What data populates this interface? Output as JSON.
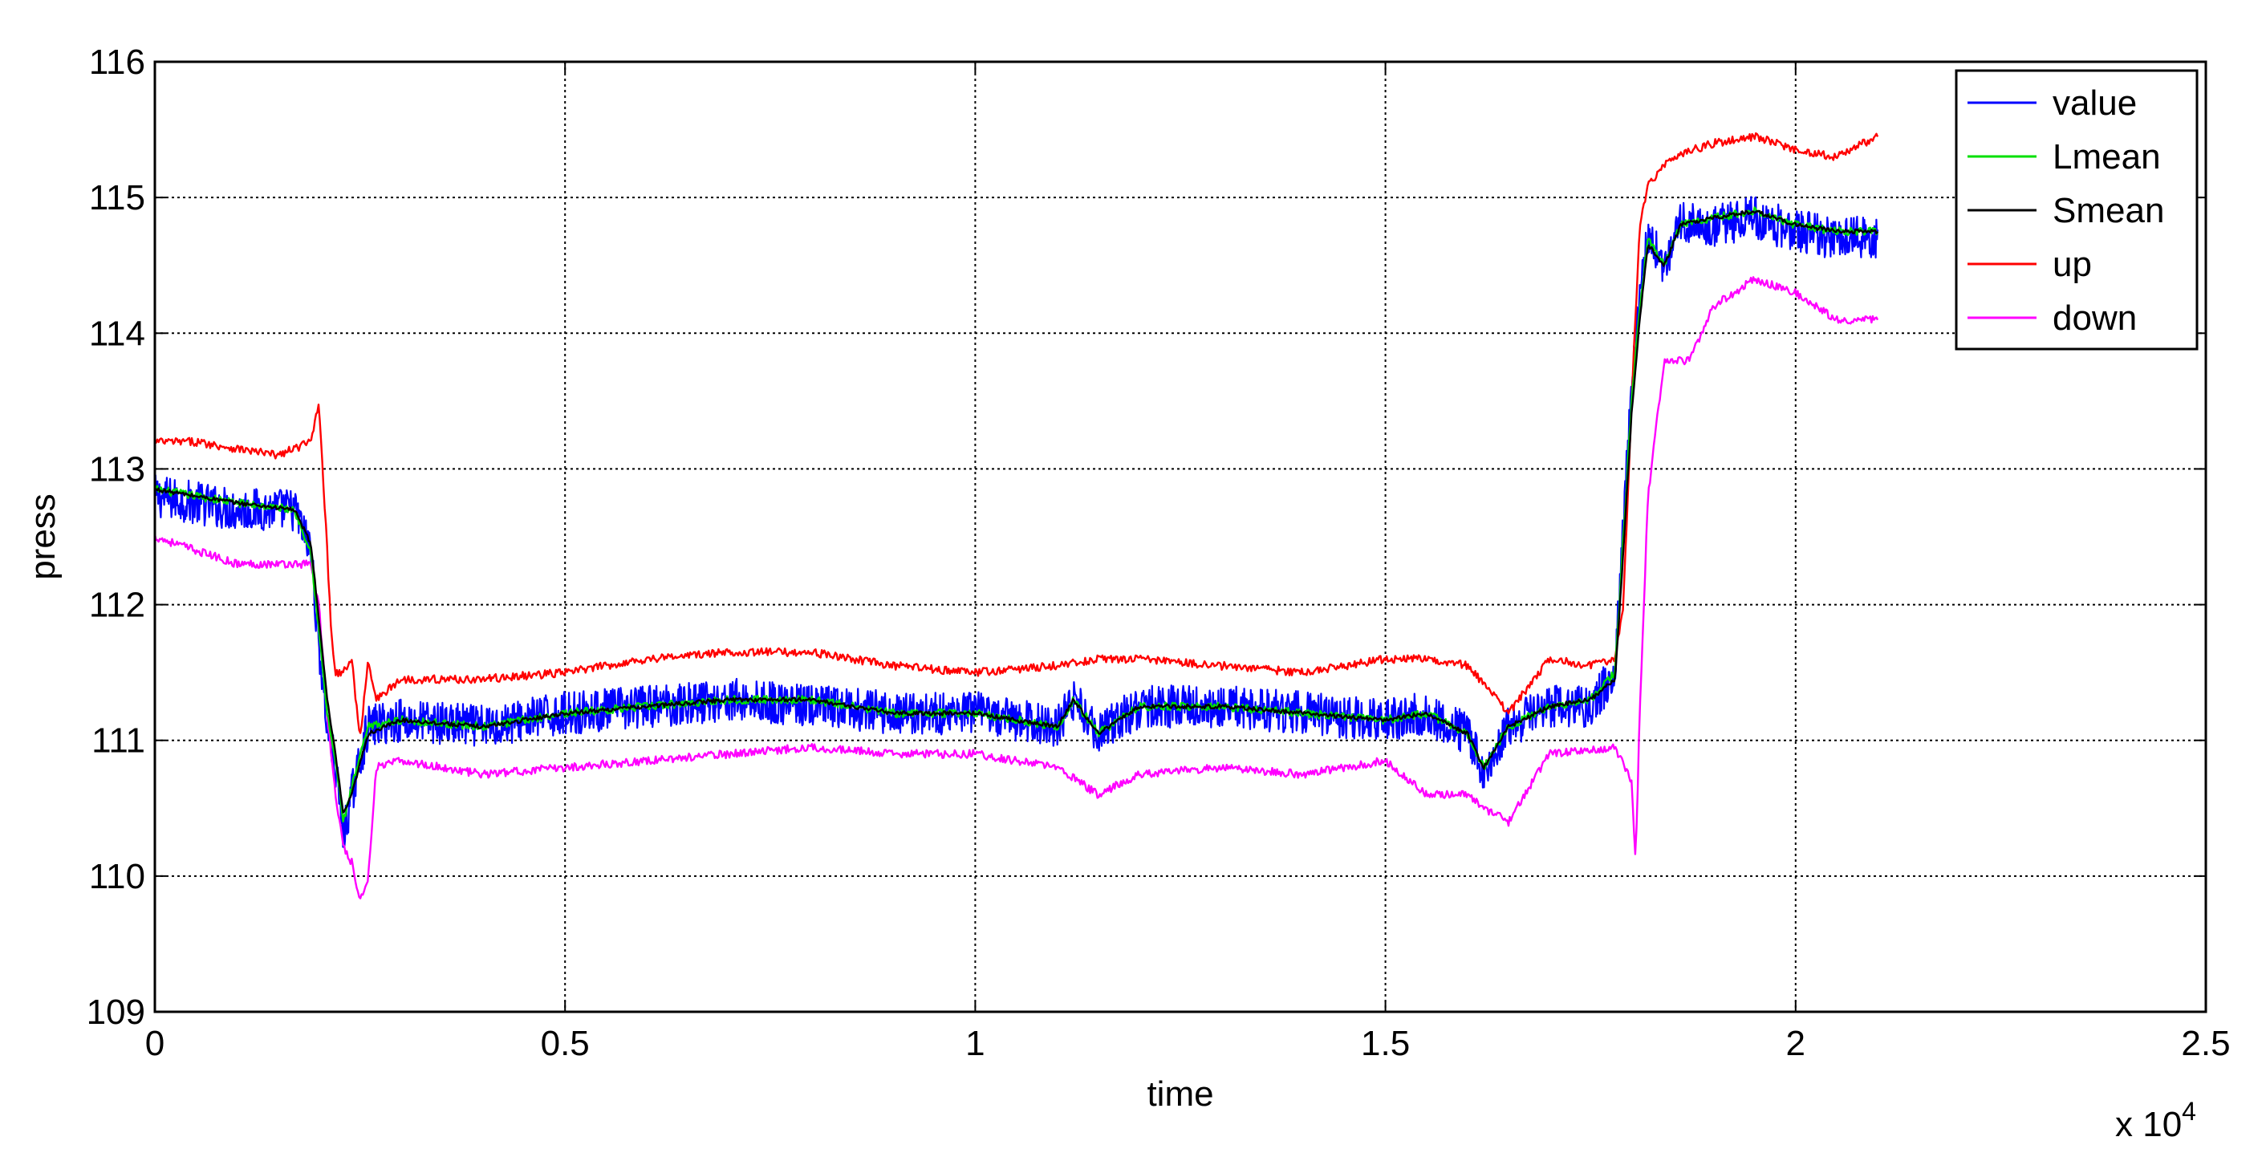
{
  "chart_data": {
    "type": "line",
    "xlabel": "time",
    "ylabel": "press",
    "x_multiplier_label": "x 10",
    "x_multiplier_exponent": "4",
    "xlim": [
      0,
      2.5
    ],
    "ylim": [
      109,
      116
    ],
    "grid": true,
    "legend_position": "top-right",
    "x_ticks": [
      "0",
      "0.5",
      "1",
      "1.5",
      "2",
      "2.5"
    ],
    "y_ticks": [
      "109",
      "110",
      "111",
      "112",
      "113",
      "114",
      "115",
      "116"
    ],
    "series": [
      {
        "name": "value",
        "color": "#0000ff",
        "noise": 0.16,
        "x": [
          0,
          0.1,
          0.17,
          0.19,
          0.2,
          0.21,
          0.22,
          0.23,
          0.24,
          0.26,
          0.3,
          0.4,
          0.5,
          0.6,
          0.7,
          0.8,
          0.9,
          1.0,
          1.05,
          1.1,
          1.12,
          1.15,
          1.2,
          1.3,
          1.4,
          1.5,
          1.55,
          1.6,
          1.62,
          1.65,
          1.7,
          1.75,
          1.78,
          1.79,
          1.8,
          1.81,
          1.82,
          1.84,
          1.86,
          1.9,
          1.95,
          2.0,
          2.05,
          2.1
        ],
        "y": [
          112.8,
          112.7,
          112.7,
          112.4,
          111.7,
          111.1,
          110.8,
          110.3,
          110.6,
          111.1,
          111.15,
          111.1,
          111.2,
          111.25,
          111.3,
          111.25,
          111.2,
          111.2,
          111.15,
          111.1,
          111.3,
          111.05,
          111.25,
          111.25,
          111.2,
          111.15,
          111.2,
          111.05,
          110.75,
          111.1,
          111.25,
          111.25,
          111.5,
          112.6,
          113.6,
          114.3,
          114.7,
          114.5,
          114.8,
          114.8,
          114.85,
          114.75,
          114.7,
          114.7
        ]
      },
      {
        "name": "Lmean",
        "color": "#00e000",
        "noise": 0.03,
        "x": [
          0,
          0.1,
          0.17,
          0.19,
          0.2,
          0.21,
          0.22,
          0.23,
          0.24,
          0.26,
          0.3,
          0.4,
          0.5,
          0.6,
          0.7,
          0.8,
          0.9,
          1.0,
          1.05,
          1.1,
          1.12,
          1.15,
          1.2,
          1.3,
          1.4,
          1.5,
          1.55,
          1.6,
          1.62,
          1.65,
          1.7,
          1.75,
          1.78,
          1.79,
          1.8,
          1.81,
          1.82,
          1.84,
          1.86,
          1.9,
          1.95,
          2.0,
          2.05,
          2.1
        ],
        "y": [
          112.85,
          112.75,
          112.7,
          112.4,
          111.8,
          111.2,
          110.85,
          110.4,
          110.65,
          111.1,
          111.15,
          111.1,
          111.2,
          111.25,
          111.3,
          111.3,
          111.2,
          111.2,
          111.15,
          111.1,
          111.3,
          111.05,
          111.25,
          111.25,
          111.2,
          111.15,
          111.2,
          111.05,
          110.8,
          111.1,
          111.25,
          111.3,
          111.5,
          112.5,
          113.5,
          114.2,
          114.7,
          114.5,
          114.8,
          114.85,
          114.9,
          114.8,
          114.75,
          114.75
        ]
      },
      {
        "name": "Smean",
        "color": "#000000",
        "noise": 0.015,
        "x": [
          0,
          0.1,
          0.17,
          0.19,
          0.2,
          0.21,
          0.22,
          0.23,
          0.24,
          0.26,
          0.3,
          0.4,
          0.5,
          0.6,
          0.7,
          0.8,
          0.9,
          1.0,
          1.05,
          1.1,
          1.12,
          1.15,
          1.2,
          1.3,
          1.4,
          1.5,
          1.55,
          1.6,
          1.62,
          1.65,
          1.7,
          1.75,
          1.78,
          1.79,
          1.8,
          1.81,
          1.82,
          1.84,
          1.86,
          1.9,
          1.95,
          2.0,
          2.05,
          2.1
        ],
        "y": [
          112.85,
          112.75,
          112.7,
          112.45,
          111.9,
          111.3,
          110.9,
          110.45,
          110.6,
          111.05,
          111.15,
          111.1,
          111.2,
          111.25,
          111.3,
          111.3,
          111.2,
          111.2,
          111.15,
          111.1,
          111.3,
          111.05,
          111.25,
          111.25,
          111.2,
          111.15,
          111.2,
          111.05,
          110.8,
          111.1,
          111.25,
          111.3,
          111.45,
          112.4,
          113.4,
          114.1,
          114.65,
          114.5,
          114.8,
          114.85,
          114.9,
          114.8,
          114.75,
          114.75
        ]
      },
      {
        "name": "up",
        "color": "#ff0000",
        "noise": 0.03,
        "x": [
          0,
          0.05,
          0.1,
          0.15,
          0.19,
          0.2,
          0.21,
          0.215,
          0.22,
          0.23,
          0.24,
          0.25,
          0.26,
          0.27,
          0.3,
          0.4,
          0.5,
          0.6,
          0.7,
          0.8,
          0.9,
          1.0,
          1.1,
          1.15,
          1.2,
          1.3,
          1.4,
          1.5,
          1.55,
          1.6,
          1.65,
          1.7,
          1.75,
          1.78,
          1.79,
          1.8,
          1.81,
          1.82,
          1.85,
          1.9,
          1.95,
          2.0,
          2.05,
          2.1
        ],
        "y": [
          113.2,
          113.2,
          113.15,
          113.1,
          113.2,
          113.5,
          112.4,
          111.8,
          111.5,
          111.5,
          111.6,
          111.0,
          111.6,
          111.3,
          111.45,
          111.45,
          111.5,
          111.6,
          111.65,
          111.65,
          111.55,
          111.5,
          111.55,
          111.6,
          111.6,
          111.55,
          111.5,
          111.6,
          111.6,
          111.55,
          111.2,
          111.6,
          111.55,
          111.6,
          112.0,
          113.5,
          114.8,
          115.1,
          115.3,
          115.4,
          115.45,
          115.35,
          115.3,
          115.45
        ]
      },
      {
        "name": "down",
        "color": "#ff00ff",
        "noise": 0.03,
        "x": [
          0,
          0.05,
          0.1,
          0.15,
          0.19,
          0.2,
          0.21,
          0.22,
          0.23,
          0.24,
          0.25,
          0.26,
          0.27,
          0.3,
          0.4,
          0.5,
          0.6,
          0.7,
          0.8,
          0.9,
          1.0,
          1.1,
          1.15,
          1.2,
          1.3,
          1.4,
          1.5,
          1.55,
          1.6,
          1.62,
          1.65,
          1.7,
          1.78,
          1.8,
          1.805,
          1.81,
          1.82,
          1.84,
          1.87,
          1.9,
          1.95,
          2.0,
          2.05,
          2.1
        ],
        "y": [
          112.5,
          112.4,
          112.3,
          112.3,
          112.3,
          112.0,
          111.2,
          110.6,
          110.2,
          110.1,
          109.8,
          110.0,
          110.8,
          110.85,
          110.75,
          110.8,
          110.85,
          110.9,
          110.95,
          110.9,
          110.9,
          110.8,
          110.6,
          110.75,
          110.8,
          110.75,
          110.85,
          110.6,
          110.6,
          110.5,
          110.4,
          110.9,
          110.95,
          110.7,
          110.1,
          111.2,
          112.8,
          113.8,
          113.8,
          114.2,
          114.4,
          114.3,
          114.1,
          114.1
        ]
      }
    ]
  }
}
